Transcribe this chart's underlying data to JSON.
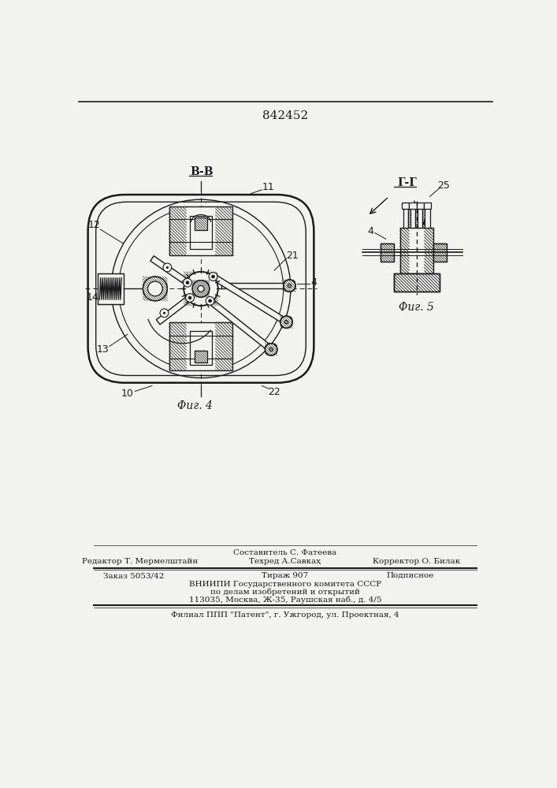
{
  "patent_number": "842452",
  "fig4_label": "Φиг. 4",
  "fig5_label": "Φиг. 5",
  "section_bb": "B-B",
  "section_gg": "Г-Г",
  "label_11": "11",
  "label_12": "12",
  "label_13": "13",
  "label_14": "14",
  "label_10": "10",
  "label_21": "21",
  "label_22": "22",
  "label_4": "4",
  "label_25": "25",
  "footer_line0_center": "Составитель С. Фатеева",
  "footer_line1_left": "Редактор Т. Мермелштайн",
  "footer_line1_center": "Техред А.Савкаҳ",
  "footer_line1_right": "Корректор О. Билак",
  "footer_zakaz": "Заказ 5053/42",
  "footer_tirazh": "Тираж 907",
  "footer_podpisnoe": "Подписное",
  "footer_vnipi": "ВНИИПИ Государственного комитета СССР",
  "footer_po_delam": "по делам изобретений и открытий",
  "footer_address": "113035, Москва, Ж-35, Раушская наб., д. 4/5",
  "footer_filial": "Филиал ППП \"Патент\", г. Ужгород, ул. Проектная, 4",
  "bg_color": "#f2f2ee",
  "line_color": "#1a1a1a",
  "hatch_color": "#333333"
}
